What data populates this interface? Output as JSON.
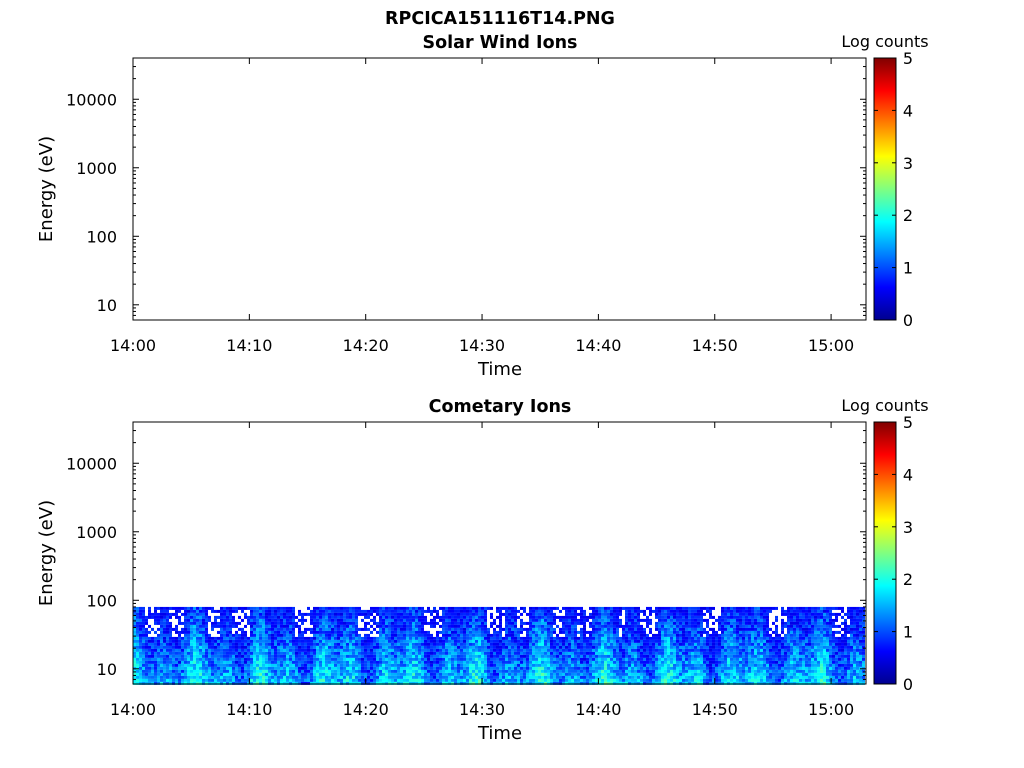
{
  "figure": {
    "title": "RPCICA151116T14.PNG"
  },
  "chart_data": [
    {
      "type": "heatmap",
      "title": "Solar Wind Ions",
      "xlabel": "Time",
      "ylabel": "Energy (eV)",
      "xlim": [
        "14:00",
        "15:03"
      ],
      "xticks": [
        "14:00",
        "14:10",
        "14:20",
        "14:30",
        "14:40",
        "14:50",
        "15:00"
      ],
      "ylim": [
        6,
        40000
      ],
      "yscale": "log",
      "yticks": [
        10,
        100,
        1000,
        10000
      ],
      "ytick_labels": [
        "10",
        "100",
        "1000",
        "10000"
      ],
      "colorbar": {
        "label": "Log counts",
        "range": [
          0,
          5
        ],
        "ticks": [
          "0",
          "1",
          "2",
          "3",
          "4",
          "5"
        ],
        "colormap": "jet"
      },
      "data_present": false
    },
    {
      "type": "heatmap",
      "title": "Cometary Ions",
      "xlabel": "Time",
      "ylabel": "Energy (eV)",
      "xlim": [
        "14:00",
        "15:03"
      ],
      "xticks": [
        "14:00",
        "14:10",
        "14:20",
        "14:30",
        "14:40",
        "14:50",
        "15:00"
      ],
      "ylim": [
        6,
        40000
      ],
      "yscale": "log",
      "yticks": [
        10,
        100,
        1000,
        10000
      ],
      "ytick_labels": [
        "10",
        "100",
        "1000",
        "10000"
      ],
      "colorbar": {
        "label": "Log counts",
        "range": [
          0,
          5
        ],
        "ticks": [
          "0",
          "1",
          "2",
          "3",
          "4",
          "5"
        ],
        "colormap": "jet"
      },
      "data_present": true,
      "energy_range_eV": [
        6,
        80
      ],
      "intensity_profile": {
        "x_minutes": [
          0,
          2,
          4,
          6,
          8,
          10,
          12,
          14,
          16,
          18,
          20,
          22,
          24,
          26,
          28,
          30,
          32,
          34,
          36,
          38,
          40,
          42,
          44,
          46,
          48,
          50,
          52,
          54,
          56,
          58,
          60,
          62,
          63
        ],
        "log_counts": [
          1.8,
          1.8,
          1.5,
          1.9,
          1.3,
          0.9,
          1.5,
          1.6,
          1.0,
          1.6,
          1.8,
          1.9,
          1.6,
          2.2,
          2.1,
          2.1,
          2.3,
          1.9,
          1.6,
          1.8,
          1.2,
          1.6,
          1.3,
          1.6,
          1.4,
          1.5,
          1.2,
          1.6,
          2.8,
          1.6,
          2.2,
          2.6,
          1.6
        ]
      }
    }
  ]
}
